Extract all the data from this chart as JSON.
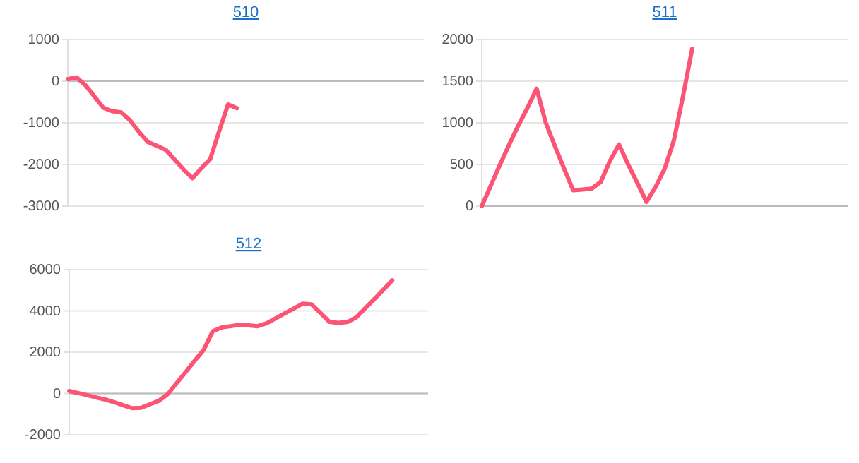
{
  "chart_data": [
    {
      "type": "line",
      "title": "510",
      "categories": [
        null,
        null,
        null,
        null,
        null,
        null,
        null,
        null,
        null,
        null,
        null,
        null,
        null,
        null,
        null,
        null,
        null,
        null,
        null,
        null,
        null,
        null,
        null,
        null,
        null,
        null,
        null,
        null,
        null,
        null,
        null,
        null,
        null,
        null,
        null,
        null,
        null,
        null,
        null,
        null,
        null
      ],
      "series": [
        {
          "color": "#fc5474",
          "values": [
            50,
            90,
            -100,
            -370,
            -640,
            -720,
            -750,
            -940,
            -1220,
            -1460,
            -1550,
            -1650,
            -1880,
            -2120,
            -2330,
            -2090,
            -1870,
            -1200,
            -560,
            -650,
            null,
            null,
            null,
            null,
            null,
            null,
            null,
            null,
            null,
            null,
            null,
            null,
            null,
            null,
            null,
            null,
            null,
            null,
            null,
            null,
            null
          ]
        }
      ],
      "ylim": [
        -3000,
        1000
      ],
      "yticks": [
        1000,
        0,
        -1000,
        -2000,
        -3000
      ],
      "grid": "y",
      "marker": "none",
      "line_style": "solid"
    },
    {
      "type": "line",
      "title": "511",
      "categories": [
        null,
        null,
        null,
        null,
        null,
        null,
        null,
        null,
        null,
        null,
        null,
        null,
        null,
        null,
        null,
        null,
        null,
        null,
        null,
        null,
        null,
        null,
        null,
        null,
        null,
        null,
        null,
        null,
        null,
        null,
        null,
        null,
        null,
        null,
        null,
        null,
        null,
        null,
        null,
        null,
        null
      ],
      "series": [
        {
          "color": "#fc5474",
          "values": [
            0,
            250,
            500,
            740,
            970,
            1180,
            1410,
            1000,
            720,
            450,
            190,
            200,
            210,
            290,
            540,
            740,
            500,
            280,
            50,
            230,
            450,
            790,
            1320,
            1890,
            null,
            null,
            null,
            null,
            null,
            null,
            null,
            null,
            null,
            null,
            null,
            null,
            null,
            null,
            null,
            null,
            null
          ]
        }
      ],
      "ylim": [
        0,
        2000
      ],
      "yticks": [
        0,
        500,
        1000,
        1500,
        2000
      ],
      "grid": "y",
      "marker": "none",
      "line_style": "solid"
    },
    {
      "type": "line",
      "title": "512",
      "categories": [
        null,
        null,
        null,
        null,
        null,
        null,
        null,
        null,
        null,
        null,
        null,
        null,
        null,
        null,
        null,
        null,
        null,
        null,
        null,
        null,
        null,
        null,
        null,
        null,
        null,
        null,
        null,
        null,
        null,
        null,
        null,
        null,
        null,
        null,
        null,
        null,
        null,
        null,
        null,
        null,
        null
      ],
      "series": [
        {
          "color": "#fc5474",
          "values": [
            120,
            20,
            -80,
            -190,
            -290,
            -420,
            -570,
            -710,
            -690,
            -520,
            -350,
            -20,
            520,
            1050,
            1590,
            2120,
            3020,
            3200,
            3260,
            3330,
            3300,
            3260,
            3400,
            3640,
            3880,
            4110,
            4350,
            4320,
            3900,
            3470,
            3420,
            3460,
            3690,
            4130,
            4570,
            5020,
            5480,
            null,
            null,
            null,
            null
          ]
        }
      ],
      "ylim": [
        -2000,
        6000
      ],
      "yticks": [
        -2000,
        0,
        2000,
        4000,
        6000
      ],
      "grid": "y",
      "marker": "none",
      "line_style": "solid"
    }
  ]
}
